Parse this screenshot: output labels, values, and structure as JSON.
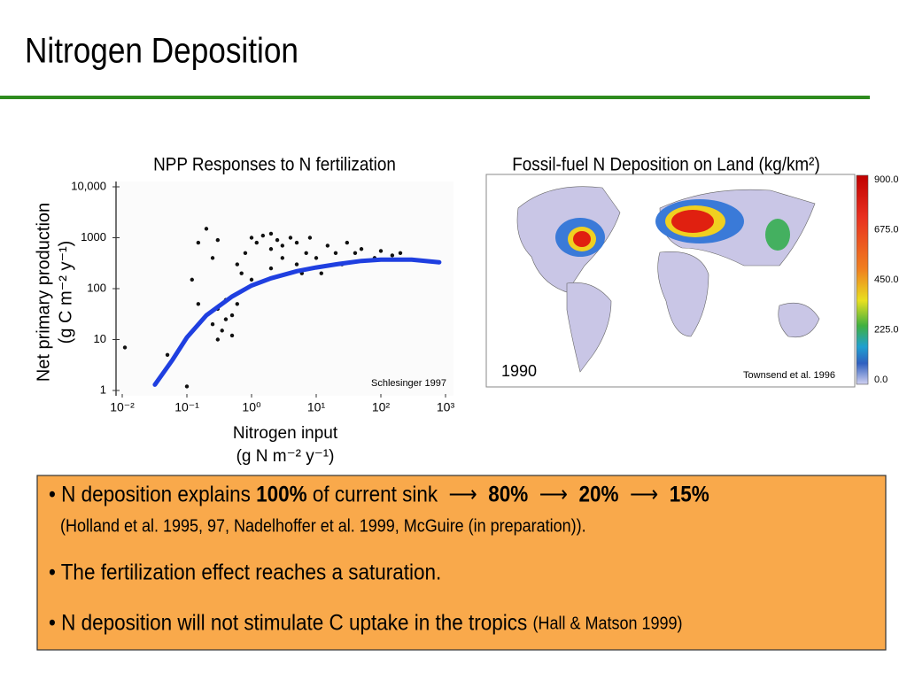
{
  "header": {
    "title": "Nitrogen Deposition"
  },
  "chart_data": {
    "type": "scatter",
    "title": "NPP Responses to N fertilization",
    "ylabel": [
      "Net primary production",
      "(g C m⁻² y⁻¹)"
    ],
    "xlabel": [
      "Nitrogen input",
      "(g N m⁻² y⁻¹)"
    ],
    "xlog": true,
    "ylog": true,
    "xlim": [
      0.01,
      1000
    ],
    "ylim": [
      1,
      10000
    ],
    "xticks": [
      {
        "value": 0.01,
        "label": "10⁻²"
      },
      {
        "value": 0.1,
        "label": "10⁻¹"
      },
      {
        "value": 1,
        "label": "10⁰"
      },
      {
        "value": 10,
        "label": "10¹"
      },
      {
        "value": 100,
        "label": "10²"
      },
      {
        "value": 1000,
        "label": "10³"
      }
    ],
    "yticks": [
      {
        "value": 10000,
        "label": "10,000"
      },
      1000,
      100,
      10,
      1
    ],
    "color": "#111111",
    "x": [
      0.15,
      0.2,
      0.3,
      0.12,
      0.15,
      0.2,
      0.25,
      0.3,
      0.35,
      0.4,
      0.3,
      0.5,
      0.6,
      0.5,
      0.7,
      0.8,
      1,
      1.2,
      1.5,
      2,
      2,
      2.5,
      3,
      3,
      4,
      5,
      5,
      6,
      7,
      8,
      10,
      12,
      15,
      20,
      25,
      30,
      40,
      50,
      80,
      100,
      150,
      200,
      0.1,
      0.05,
      0.011,
      0.4,
      0.25,
      1,
      2,
      0.6
    ],
    "values": [
      800,
      1500,
      900,
      150,
      50,
      30,
      20,
      40,
      15,
      25,
      10,
      30,
      50,
      12,
      200,
      500,
      1000,
      800,
      1100,
      600,
      1200,
      900,
      400,
      700,
      1000,
      300,
      800,
      200,
      500,
      1000,
      400,
      200,
      700,
      500,
      300,
      800,
      500,
      600,
      400,
      550,
      450,
      500,
      1.2,
      5,
      7,
      60,
      400,
      150,
      250,
      300
    ],
    "curve": {
      "color": "#1f3fe0",
      "x": [
        0.032,
        0.06,
        0.1,
        0.2,
        0.5,
        1,
        2,
        5,
        10,
        20,
        50,
        100,
        300,
        800
      ],
      "values": [
        1.3,
        4,
        11,
        30,
        70,
        115,
        160,
        220,
        260,
        300,
        350,
        370,
        370,
        330
      ]
    },
    "annotation": "Schlesinger 1997"
  },
  "map": {
    "title": "Fossil-fuel N Deposition on Land (kg/km²)",
    "year": "1990",
    "credit": "Townsend et al. 1996",
    "colorbar_labels": [
      "900.0",
      "675.0",
      "450.0",
      "225.0",
      "0.0"
    ]
  },
  "bullets": [
    {
      "parts": [
        {
          "text": "• N deposition explains "
        },
        {
          "text": "100%",
          "bold": true
        },
        {
          "text": " of current sink  ⟶  "
        },
        {
          "text": "80%",
          "bold": true
        },
        {
          "text": "  ⟶  "
        },
        {
          "text": "20%",
          "bold": true
        },
        {
          "text": "  ⟶  "
        },
        {
          "text": "15%",
          "bold": true
        }
      ],
      "note": "(Holland et al. 1995, 97, Nadelhoffer et al. 1999, McGuire (in preparation))."
    },
    {
      "parts": [
        {
          "text": "• The fertilization effect reaches a saturation."
        }
      ]
    },
    {
      "parts": [
        {
          "text": "• N deposition will not stimulate C uptake in the tropics "
        },
        {
          "text": "(Hall & Matson 1999)",
          "small": true
        }
      ]
    }
  ]
}
